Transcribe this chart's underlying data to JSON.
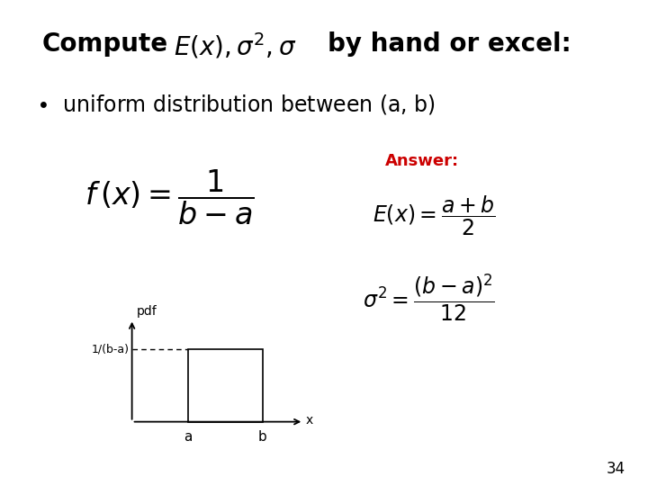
{
  "bg_color": "#ffffff",
  "title_fontsize": 20,
  "bullet_fontsize": 17,
  "formula_fontsize": 20,
  "answer_fontsize": 13,
  "answer_eq_fontsize": 17,
  "slide_number": "34",
  "answer_color": "#cc0000",
  "plot_ylabel": "pdf",
  "plot_xlabel_a": "a",
  "plot_xlabel_b": "b",
  "plot_xlabel_x": "x",
  "plot_label_y": "1/(b-a)"
}
